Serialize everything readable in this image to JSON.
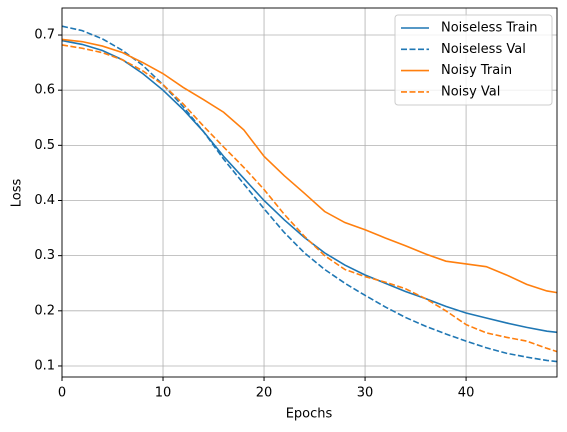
{
  "chart_data": {
    "type": "line",
    "x_label": "Epochs",
    "y_label": "Loss",
    "x": [
      0,
      2,
      4,
      6,
      8,
      10,
      12,
      14,
      16,
      18,
      20,
      22,
      24,
      26,
      28,
      30,
      32,
      34,
      36,
      38,
      40,
      42,
      44,
      46,
      48,
      49
    ],
    "series": [
      {
        "name": "Noiseless Train",
        "color": "#1f77b4",
        "style": "solid",
        "values": [
          0.69,
          0.683,
          0.672,
          0.655,
          0.63,
          0.6,
          0.565,
          0.525,
          0.48,
          0.44,
          0.4,
          0.365,
          0.333,
          0.305,
          0.283,
          0.265,
          0.25,
          0.235,
          0.222,
          0.208,
          0.196,
          0.187,
          0.178,
          0.17,
          0.163,
          0.161
        ]
      },
      {
        "name": "Noiseless Val",
        "color": "#1f77b4",
        "style": "dashed",
        "values": [
          0.716,
          0.708,
          0.693,
          0.672,
          0.645,
          0.61,
          0.57,
          0.525,
          0.475,
          0.43,
          0.385,
          0.342,
          0.305,
          0.275,
          0.25,
          0.228,
          0.207,
          0.188,
          0.172,
          0.158,
          0.145,
          0.133,
          0.123,
          0.116,
          0.11,
          0.108
        ]
      },
      {
        "name": "Noisy Train",
        "color": "#ff7f0e",
        "style": "solid",
        "values": [
          0.692,
          0.688,
          0.68,
          0.668,
          0.65,
          0.63,
          0.605,
          0.583,
          0.56,
          0.528,
          0.48,
          0.445,
          0.413,
          0.38,
          0.36,
          0.347,
          0.332,
          0.318,
          0.303,
          0.29,
          0.285,
          0.28,
          0.265,
          0.248,
          0.236,
          0.233
        ]
      },
      {
        "name": "Noisy Val",
        "color": "#ff7f0e",
        "style": "dashed",
        "values": [
          0.682,
          0.676,
          0.668,
          0.655,
          0.635,
          0.61,
          0.575,
          0.535,
          0.497,
          0.46,
          0.42,
          0.375,
          0.335,
          0.3,
          0.275,
          0.262,
          0.252,
          0.24,
          0.222,
          0.2,
          0.175,
          0.16,
          0.152,
          0.145,
          0.132,
          0.126
        ]
      }
    ],
    "xlim": [
      0,
      49
    ],
    "xticks": [
      0,
      10,
      20,
      30,
      40
    ],
    "ylim": [
      0.08,
      0.749
    ],
    "yticks": [
      0.1,
      0.2,
      0.3,
      0.4,
      0.5,
      0.6,
      0.7
    ],
    "grid": true,
    "legend": "upper right"
  }
}
